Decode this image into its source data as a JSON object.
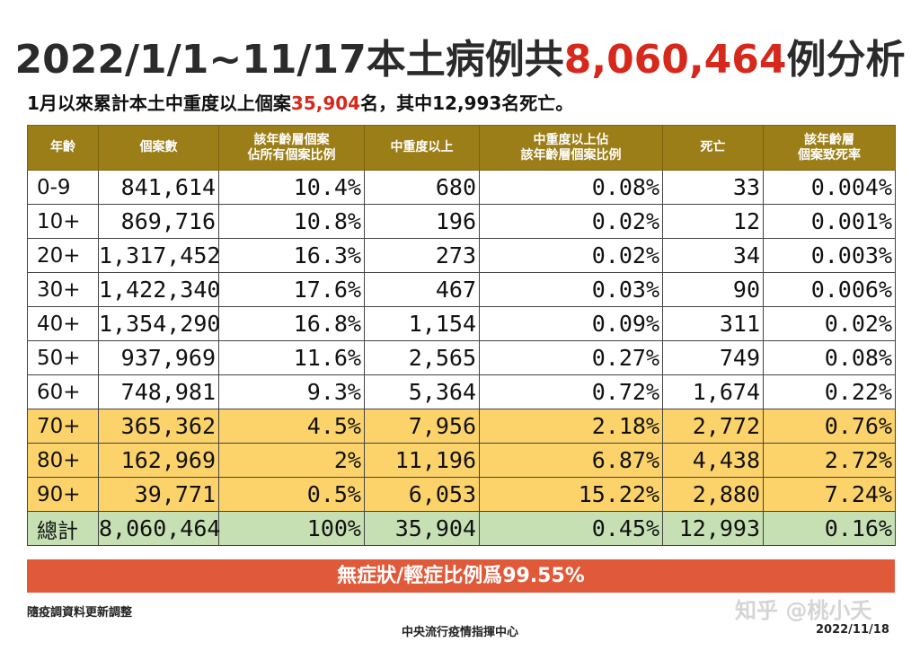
{
  "title": {
    "prefix": "2022/1/1~11/17本土病例共",
    "count": "8,060,464",
    "suffix": "例分析"
  },
  "subtitle": {
    "prefix": "1月以來累計本土中重度以上個案",
    "count": "35,904",
    "suffix": "名，其中12,993名死亡。"
  },
  "table": {
    "headers": [
      "年齡",
      "個案數",
      "該年齡層個案\n佔所有個案比例",
      "中重度以上",
      "中重度以上佔\n該年齡層個案比例",
      "死亡",
      "該年齡層\n個案致死率"
    ],
    "rows": [
      {
        "age": "0-9",
        "cases": "841,614",
        "share": "10.4%",
        "severe": "680",
        "severe_rate": "0.08%",
        "deaths": "33",
        "cfr": "0.004%",
        "highlight": "none"
      },
      {
        "age": "10+",
        "cases": "869,716",
        "share": "10.8%",
        "severe": "196",
        "severe_rate": "0.02%",
        "deaths": "12",
        "cfr": "0.001%",
        "highlight": "none"
      },
      {
        "age": "20+",
        "cases": "1,317,452",
        "share": "16.3%",
        "severe": "273",
        "severe_rate": "0.02%",
        "deaths": "34",
        "cfr": "0.003%",
        "highlight": "none"
      },
      {
        "age": "30+",
        "cases": "1,422,340",
        "share": "17.6%",
        "severe": "467",
        "severe_rate": "0.03%",
        "deaths": "90",
        "cfr": "0.006%",
        "highlight": "none"
      },
      {
        "age": "40+",
        "cases": "1,354,290",
        "share": "16.8%",
        "severe": "1,154",
        "severe_rate": "0.09%",
        "deaths": "311",
        "cfr": "0.02%",
        "highlight": "none"
      },
      {
        "age": "50+",
        "cases": "937,969",
        "share": "11.6%",
        "severe": "2,565",
        "severe_rate": "0.27%",
        "deaths": "749",
        "cfr": "0.08%",
        "highlight": "none"
      },
      {
        "age": "60+",
        "cases": "748,981",
        "share": "9.3%",
        "severe": "5,364",
        "severe_rate": "0.72%",
        "deaths": "1,674",
        "cfr": "0.22%",
        "highlight": "none"
      },
      {
        "age": "70+",
        "cases": "365,362",
        "share": "4.5%",
        "severe": "7,956",
        "severe_rate": "2.18%",
        "deaths": "2,772",
        "cfr": "0.76%",
        "highlight": "high"
      },
      {
        "age": "80+",
        "cases": "162,969",
        "share": "2%",
        "severe": "11,196",
        "severe_rate": "6.87%",
        "deaths": "4,438",
        "cfr": "2.72%",
        "highlight": "high"
      },
      {
        "age": "90+",
        "cases": "39,771",
        "share": "0.5%",
        "severe": "6,053",
        "severe_rate": "15.22%",
        "deaths": "2,880",
        "cfr": "7.24%",
        "highlight": "high"
      },
      {
        "age": "總計",
        "cases": "8,060,464",
        "share": "100%",
        "severe": "35,904",
        "severe_rate": "0.45%",
        "deaths": "12,993",
        "cfr": "0.16%",
        "highlight": "total"
      }
    ]
  },
  "banner": "無症狀/輕症比例爲99.55%",
  "footnote": "隨疫調資料更新調整",
  "agency": "中央流行疫情指揮中心",
  "watermark": "知乎 @桃小夭",
  "date": "2022/11/18",
  "colors": {
    "header": "#9c7e18",
    "highlight_red": "#d7281c",
    "high_risk_rows": "#fcd36a",
    "total_row": "#c6e0b4",
    "banner": "#e05a3a"
  }
}
